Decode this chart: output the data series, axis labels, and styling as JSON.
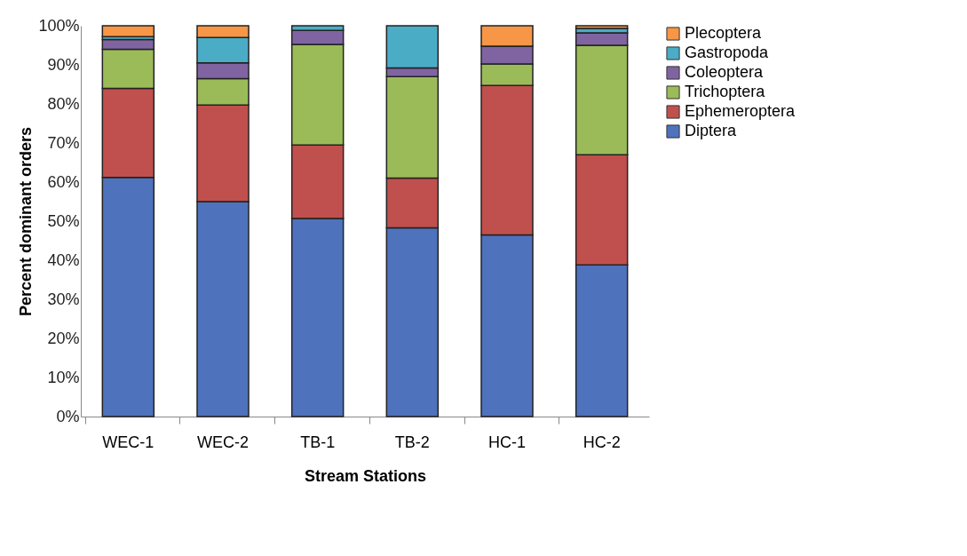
{
  "chart_data": {
    "type": "bar",
    "stacked": true,
    "xlabel": "Stream Stations",
    "ylabel": "Percent dominant orders",
    "categories": [
      "WEC-1",
      "WEC-2",
      "TB-1",
      "TB-2",
      "HC-1",
      "HC-2"
    ],
    "series": [
      {
        "name": "Diptera",
        "color": "#4f72bd",
        "values": [
          61.2,
          55,
          50.7,
          48.3,
          46.5,
          38.8
        ]
      },
      {
        "name": "Ephemeroptera",
        "color": "#c0504d",
        "values": [
          22.8,
          24.7,
          18.8,
          12.7,
          38.2,
          28.2
        ]
      },
      {
        "name": "Trichoptera",
        "color": "#9bbb59",
        "values": [
          10,
          6.8,
          25.7,
          26,
          5.5,
          28
        ]
      },
      {
        "name": "Coleoptera",
        "color": "#8064a2",
        "values": [
          2.5,
          4,
          3.6,
          2.2,
          4.6,
          3.2
        ]
      },
      {
        "name": "Gastropoda",
        "color": "#4bacc6",
        "values": [
          0.7,
          6.5,
          1.2,
          10.8,
          0,
          1.1
        ]
      },
      {
        "name": "Plecoptera",
        "color": "#f79646",
        "values": [
          2.8,
          3,
          0,
          0,
          5.2,
          0.7
        ]
      }
    ],
    "ylim": [
      0,
      100
    ],
    "yticks": [
      {
        "value": 0,
        "label": "0%"
      },
      {
        "value": 10,
        "label": "10%"
      },
      {
        "value": 20,
        "label": "20%"
      },
      {
        "value": 30,
        "label": "30%"
      },
      {
        "value": 40,
        "label": "40%"
      },
      {
        "value": 50,
        "label": "50%"
      },
      {
        "value": 60,
        "label": "60%"
      },
      {
        "value": 70,
        "label": "70%"
      },
      {
        "value": 80,
        "label": "80%"
      },
      {
        "value": 90,
        "label": "90%"
      },
      {
        "value": 100,
        "label": "100%"
      }
    ],
    "grid": false,
    "legend": "right"
  }
}
